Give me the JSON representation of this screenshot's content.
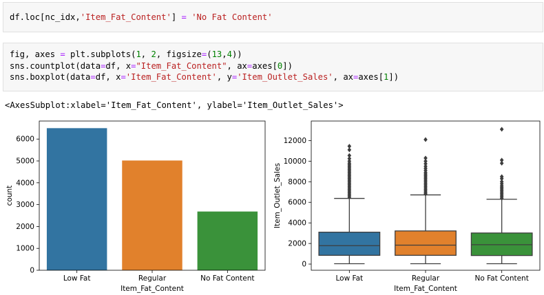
{
  "cells": {
    "cell1": {
      "line1": [
        {
          "t": "df.loc[nc_idx,",
          "c": "kw"
        },
        {
          "t": "'Item_Fat_Content'",
          "c": "str"
        },
        {
          "t": "] ",
          "c": "kw"
        },
        {
          "t": "=",
          "c": "op"
        },
        {
          "t": " ",
          "c": "kw"
        },
        {
          "t": "'No Fat Content'",
          "c": "str"
        }
      ]
    },
    "cell2": {
      "line1": [
        {
          "t": "fig, axes ",
          "c": "kw"
        },
        {
          "t": "=",
          "c": "op"
        },
        {
          "t": " plt.subplots(",
          "c": "kw"
        },
        {
          "t": "1",
          "c": "num"
        },
        {
          "t": ", ",
          "c": "kw"
        },
        {
          "t": "2",
          "c": "num"
        },
        {
          "t": ", figsize",
          "c": "kw"
        },
        {
          "t": "=",
          "c": "op"
        },
        {
          "t": "(",
          "c": "kw"
        },
        {
          "t": "13",
          "c": "num"
        },
        {
          "t": ",",
          "c": "kw"
        },
        {
          "t": "4",
          "c": "num"
        },
        {
          "t": "))",
          "c": "kw"
        }
      ],
      "line2": [
        {
          "t": "sns.countplot(data",
          "c": "kw"
        },
        {
          "t": "=",
          "c": "op"
        },
        {
          "t": "df, x",
          "c": "kw"
        },
        {
          "t": "=",
          "c": "op"
        },
        {
          "t": "\"Item_Fat_Content\"",
          "c": "str"
        },
        {
          "t": ", ax",
          "c": "kw"
        },
        {
          "t": "=",
          "c": "op"
        },
        {
          "t": "axes[",
          "c": "kw"
        },
        {
          "t": "0",
          "c": "num"
        },
        {
          "t": "])",
          "c": "kw"
        }
      ],
      "line3": [
        {
          "t": "sns.boxplot(data",
          "c": "kw"
        },
        {
          "t": "=",
          "c": "op"
        },
        {
          "t": "df, x",
          "c": "kw"
        },
        {
          "t": "=",
          "c": "op"
        },
        {
          "t": "'Item_Fat_Content'",
          "c": "str"
        },
        {
          "t": ", y",
          "c": "kw"
        },
        {
          "t": "=",
          "c": "op"
        },
        {
          "t": "'Item_Outlet_Sales'",
          "c": "str"
        },
        {
          "t": ", ax",
          "c": "kw"
        },
        {
          "t": "=",
          "c": "op"
        },
        {
          "t": "axes[",
          "c": "kw"
        },
        {
          "t": "1",
          "c": "num"
        },
        {
          "t": "])",
          "c": "kw"
        }
      ]
    },
    "output_text": "<AxesSubplot:xlabel='Item_Fat_Content', ylabel='Item_Outlet_Sales'>"
  },
  "chart_data": [
    {
      "type": "bar",
      "categories": [
        "Low Fat",
        "Regular",
        "No Fat Content"
      ],
      "values": [
        6499,
        5019,
        2686
      ],
      "xlabel": "Item_Fat_Content",
      "ylabel": "count",
      "ylim": [
        0,
        6825
      ],
      "yticks": [
        0,
        1000,
        2000,
        3000,
        4000,
        5000,
        6000
      ],
      "colors": [
        "#3274a1",
        "#e1812c",
        "#3a923a"
      ],
      "grid": false
    },
    {
      "type": "boxplot",
      "categories": [
        "Low Fat",
        "Regular",
        "No Fat Content"
      ],
      "xlabel": "Item_Fat_Content",
      "ylabel": "Item_Outlet_Sales",
      "ylim": [
        -600,
        13900
      ],
      "yticks": [
        0,
        2000,
        4000,
        6000,
        8000,
        10000,
        12000
      ],
      "colors": [
        "#3274a1",
        "#e1812c",
        "#3a923a"
      ],
      "grid": false,
      "boxes": [
        {
          "min": 33,
          "q1": 850,
          "median": 1790,
          "q3": 3100,
          "max": 6380,
          "outliers": [
            6500,
            6650,
            6800,
            6950,
            7100,
            7250,
            7400,
            7550,
            7700,
            7850,
            8000,
            8150,
            8300,
            8450,
            8600,
            8750,
            8900,
            9050,
            9200,
            9350,
            9500,
            9650,
            9800,
            10000,
            10250,
            10550,
            11100,
            11450
          ]
        },
        {
          "min": 33,
          "q1": 850,
          "median": 1840,
          "q3": 3220,
          "max": 6720,
          "outliers": [
            6820,
            6950,
            7100,
            7250,
            7400,
            7550,
            7700,
            7850,
            8000,
            8150,
            8300,
            8450,
            8600,
            8750,
            8900,
            9100,
            9300,
            9500,
            9750,
            10000,
            10300,
            12100
          ]
        },
        {
          "min": 33,
          "q1": 830,
          "median": 1880,
          "q3": 3020,
          "max": 6300,
          "outliers": [
            6400,
            6550,
            6700,
            6850,
            7000,
            7150,
            7300,
            7450,
            7600,
            7800,
            8000,
            8300,
            8500,
            9800,
            10100,
            13100
          ]
        }
      ]
    }
  ]
}
